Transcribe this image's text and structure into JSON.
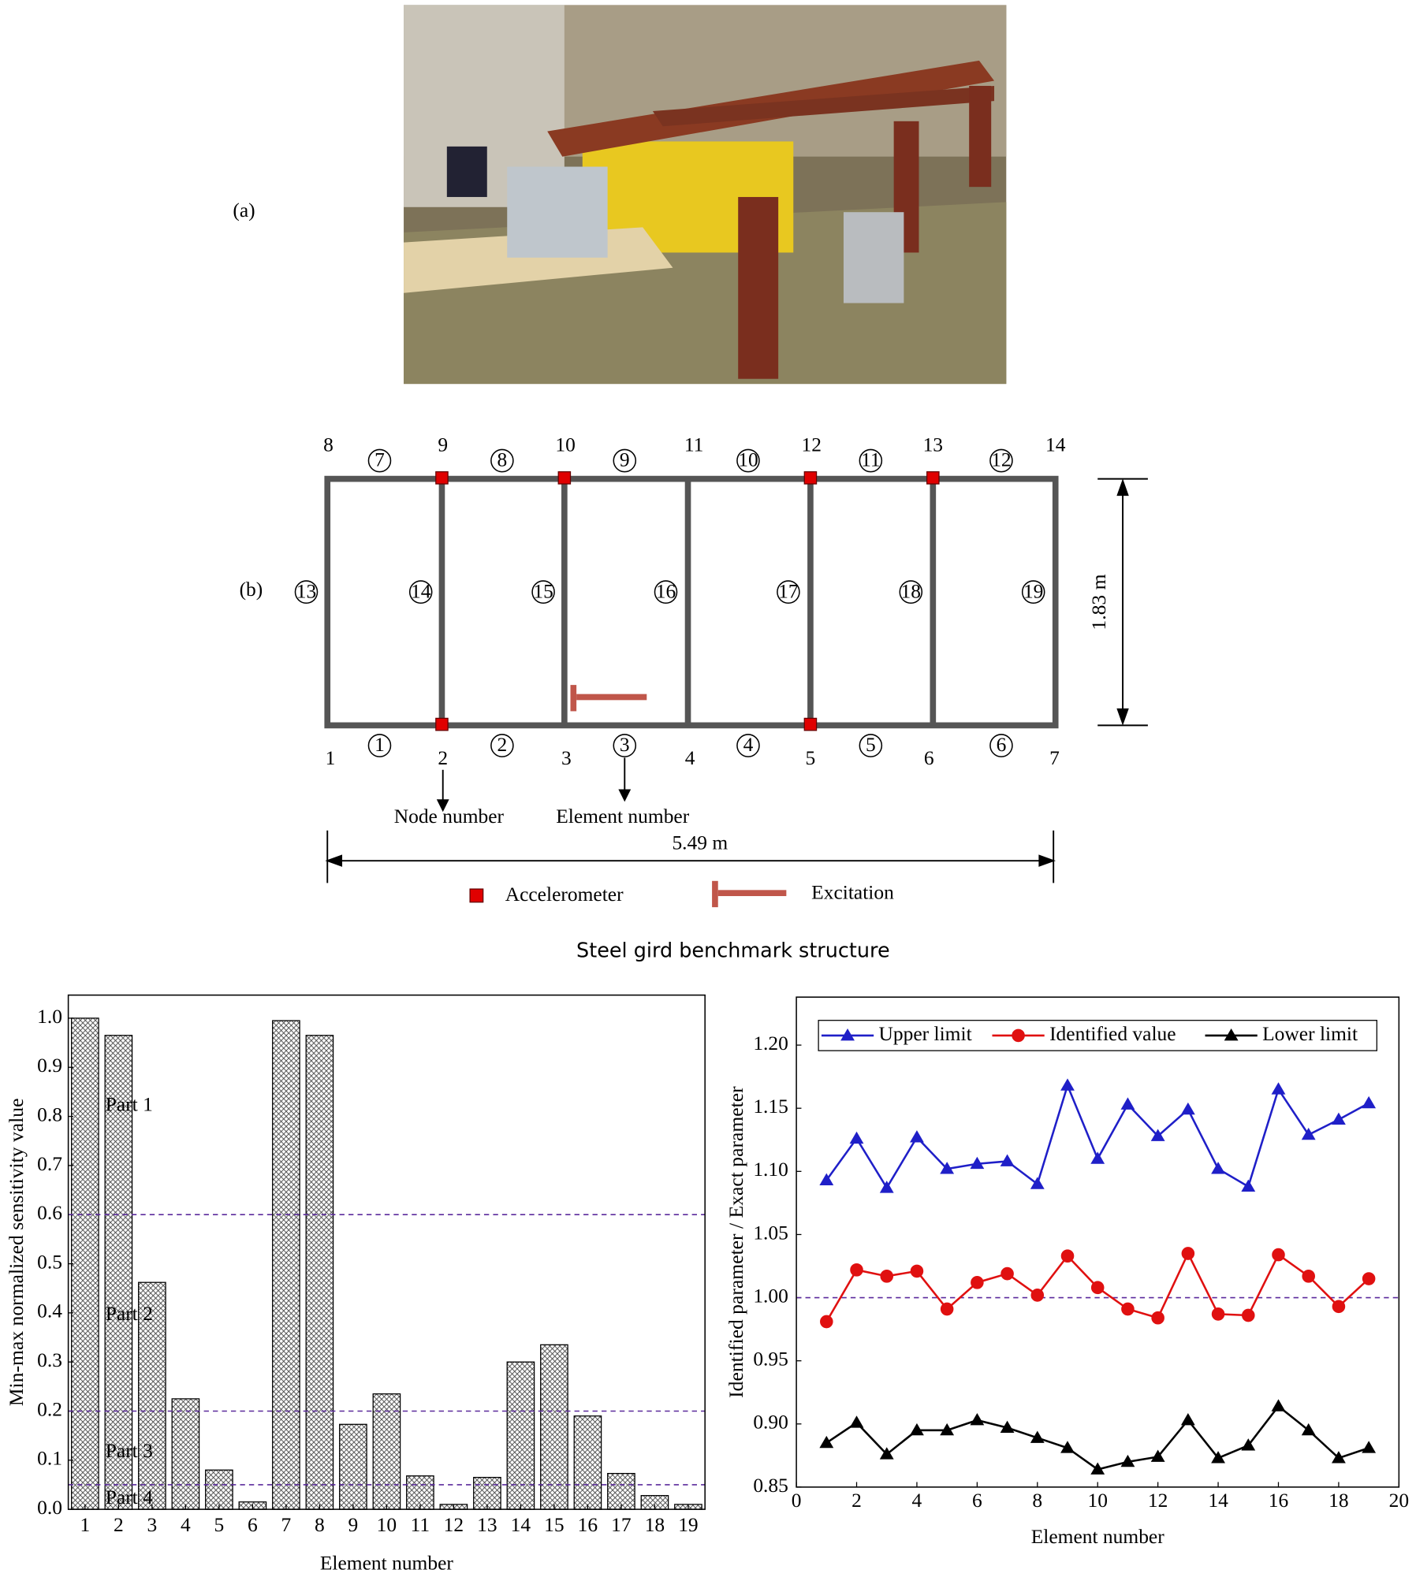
{
  "photo_label": "(a)",
  "diagram": {
    "label": "(b)",
    "nodes": [
      1,
      2,
      3,
      4,
      5,
      6,
      7,
      8,
      9,
      10,
      11,
      12,
      13,
      14
    ],
    "elements": [
      1,
      2,
      3,
      4,
      5,
      6,
      7,
      8,
      9,
      10,
      11,
      12,
      13,
      14,
      15,
      16,
      17,
      18,
      19
    ],
    "height": "1.83 m",
    "width": "5.49 m",
    "node_callout": "Node number",
    "element_callout": "Element number",
    "legend": [
      "Accelerometer",
      "Excitation"
    ]
  },
  "title": "Steel gird benchmark structure",
  "chart_data": [
    {
      "type": "bar",
      "categories": [
        1,
        2,
        3,
        4,
        5,
        6,
        7,
        8,
        9,
        10,
        11,
        12,
        13,
        14,
        15,
        16,
        17,
        18,
        19
      ],
      "values": [
        1.0,
        0.965,
        0.462,
        0.225,
        0.08,
        0.015,
        0.995,
        0.965,
        0.173,
        0.235,
        0.068,
        0.01,
        0.065,
        0.3,
        0.335,
        0.19,
        0.073,
        0.028,
        0.01
      ],
      "ylim": [
        0,
        1.047
      ],
      "yticks": [
        {
          "value": 0,
          "label": "0.0"
        },
        0.1,
        0.2,
        0.3,
        0.4,
        0.5,
        0.6,
        0.7,
        0.8,
        0.9,
        {
          "value": 1,
          "label": "1.0"
        }
      ],
      "thresholds": [
        0.6,
        0.2,
        0.05
      ],
      "annotations": [
        "Part 1",
        "Part 2",
        "Part 3",
        "Part 4"
      ],
      "xlabel": "Element number",
      "ylabel": "Min-max normalized sensitivity value",
      "grid": false
    },
    {
      "type": "line",
      "x": [
        1,
        2,
        3,
        4,
        5,
        6,
        7,
        8,
        9,
        10,
        11,
        12,
        13,
        14,
        15,
        16,
        17,
        18,
        19
      ],
      "xlim": [
        0,
        20
      ],
      "xticks": [
        0,
        2,
        4,
        6,
        8,
        10,
        12,
        14,
        16,
        18,
        20
      ],
      "ylim": [
        0.85,
        1.238
      ],
      "yticks": [
        0.85,
        {
          "value": 0.9,
          "label": "0.90"
        },
        0.95,
        {
          "value": 1,
          "label": "1.00"
        },
        1.05,
        {
          "value": 1.1,
          "label": "1.10"
        },
        1.15,
        {
          "value": 1.2,
          "label": "1.20"
        }
      ],
      "reference": 1,
      "xlabel": "Element number",
      "ylabel": "Identified parameter / Exact parameter",
      "legend": "top",
      "grid": false,
      "series": [
        {
          "name": "Upper limit",
          "color": "#1f1fc8",
          "marker": "triangle",
          "values": [
            1.093,
            1.126,
            1.087,
            1.127,
            1.102,
            1.106,
            1.108,
            1.09,
            1.168,
            1.11,
            1.153,
            1.128,
            1.149,
            1.102,
            1.088,
            1.165,
            1.129,
            1.141,
            1.154
          ]
        },
        {
          "name": "Identified value",
          "color": "#e01010",
          "marker": "circle",
          "values": [
            0.981,
            1.022,
            1.017,
            1.021,
            0.991,
            1.012,
            1.019,
            1.002,
            1.033,
            1.008,
            0.991,
            0.984,
            1.035,
            0.987,
            0.986,
            1.034,
            1.017,
            0.993,
            1.015
          ]
        },
        {
          "name": "Lower limit",
          "color": "#000000",
          "marker": "triangle",
          "values": [
            0.885,
            0.901,
            0.876,
            0.895,
            0.895,
            0.903,
            0.897,
            0.889,
            0.881,
            0.864,
            0.87,
            0.874,
            0.903,
            0.873,
            0.883,
            0.914,
            0.895,
            0.873,
            0.881
          ]
        }
      ]
    }
  ]
}
